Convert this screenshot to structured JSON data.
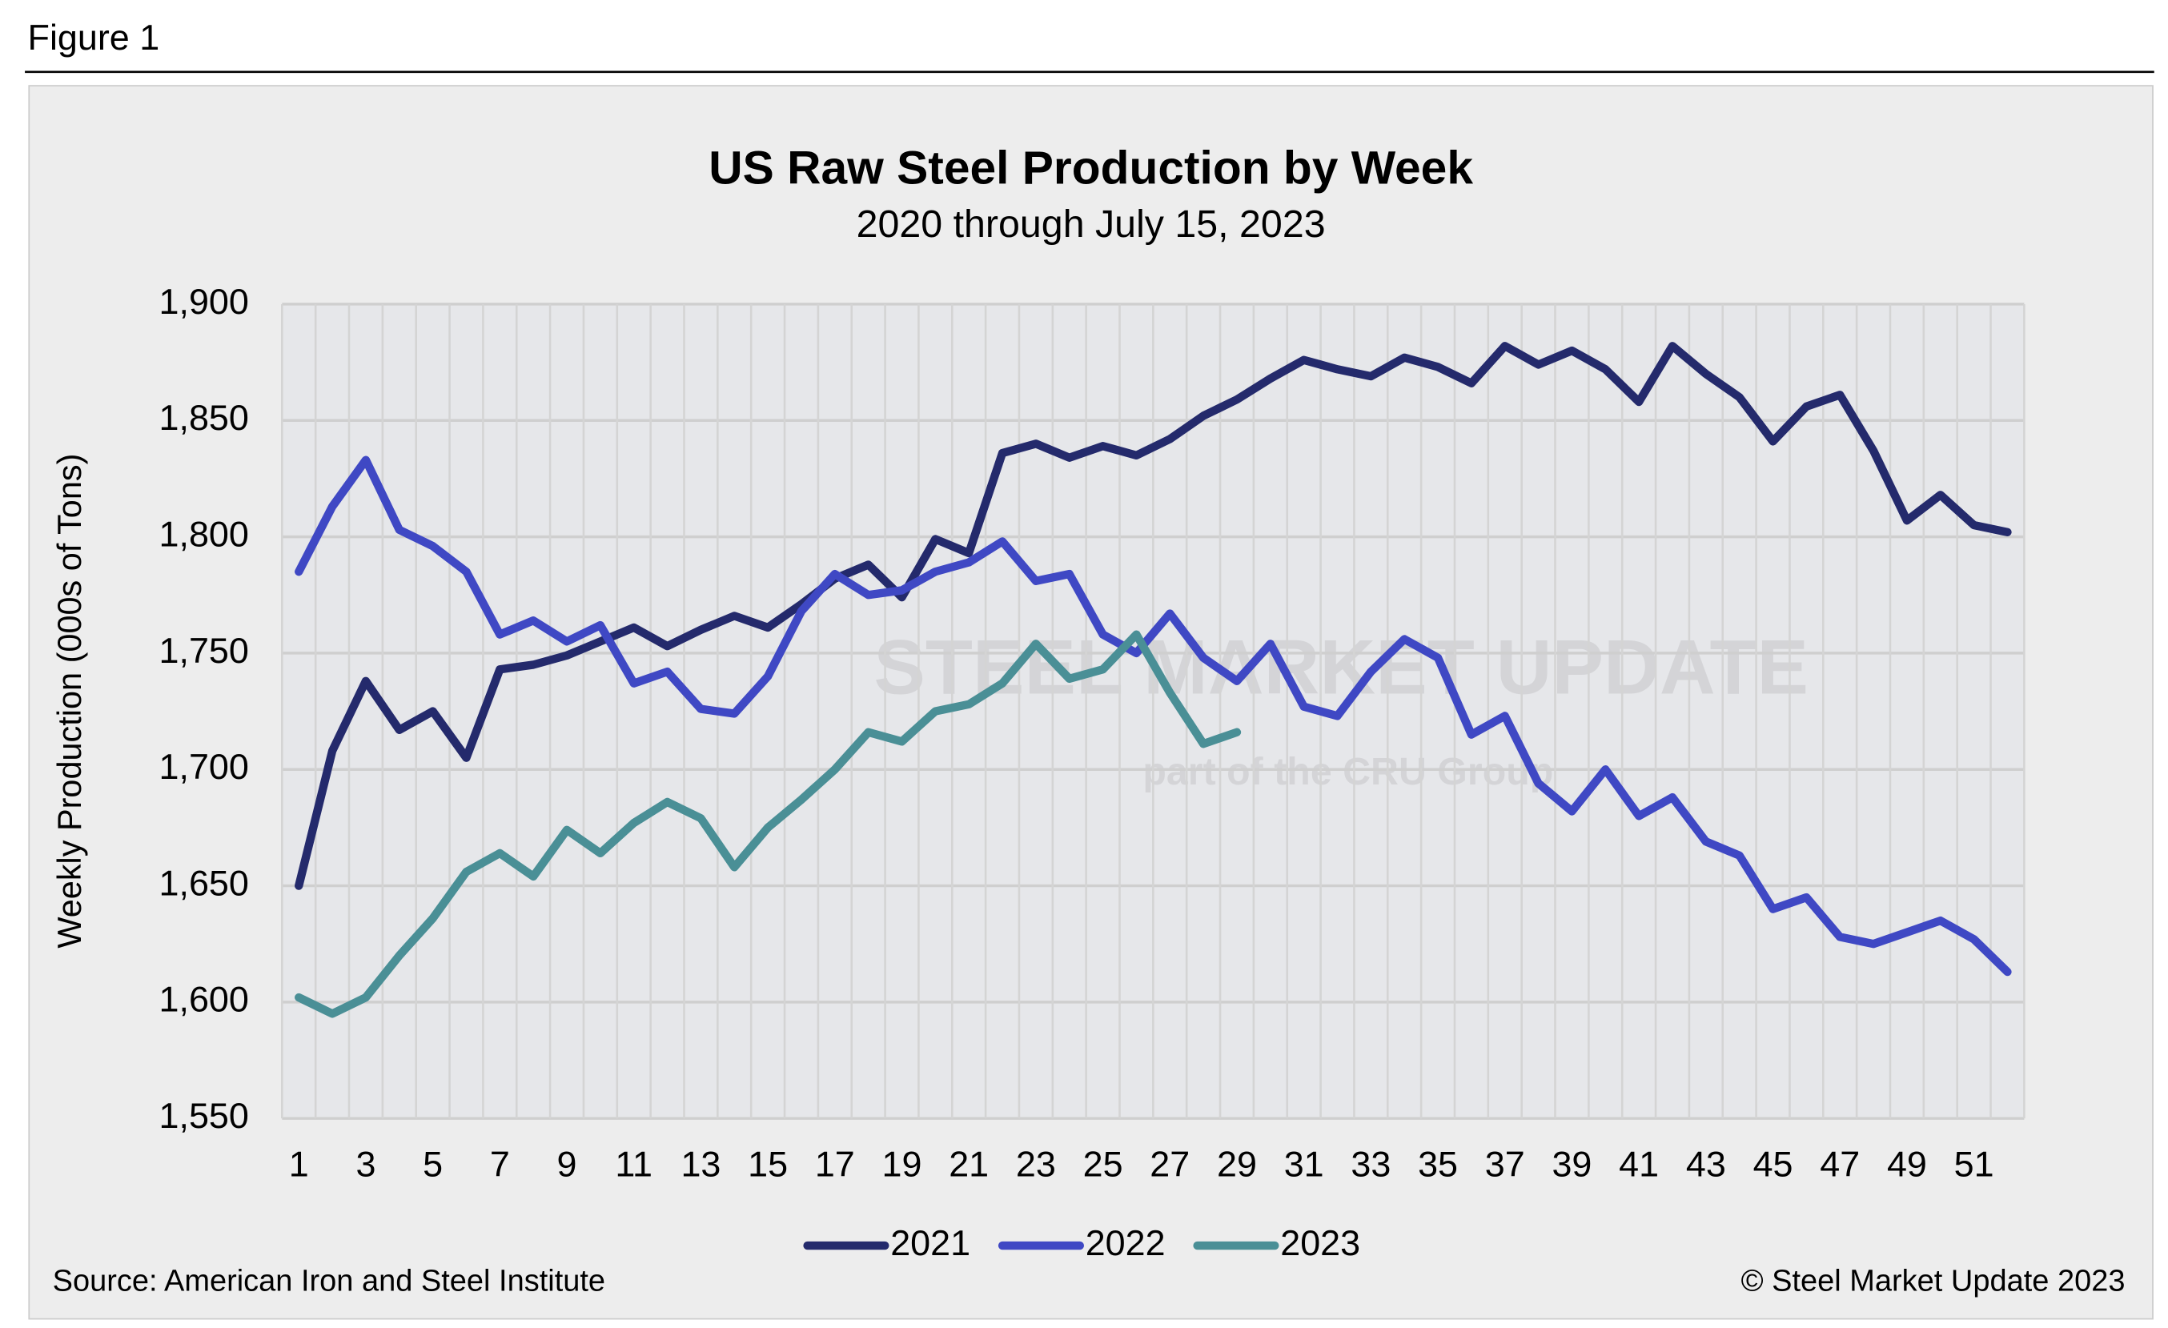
{
  "figure_label": "Figure 1",
  "source": "Source: American Iron and Steel Institute",
  "copyright": "© Steel Market Update 2023",
  "watermark": [
    "STEEL MARKET UPDATE",
    "part of the CRU Group"
  ],
  "chart_data": {
    "type": "line",
    "title": "US Raw Steel Production by Week",
    "subtitle": "2020 through July 15, 2023",
    "y_label": "Weekly Production (000s of Tons)",
    "categories": [
      1,
      null,
      3,
      null,
      5,
      null,
      7,
      null,
      9,
      null,
      11,
      null,
      13,
      null,
      15,
      null,
      17,
      null,
      19,
      null,
      21,
      null,
      23,
      null,
      25,
      null,
      27,
      null,
      29,
      null,
      31,
      null,
      33,
      null,
      35,
      null,
      37,
      null,
      39,
      null,
      41,
      null,
      43,
      null,
      45,
      null,
      47,
      null,
      49,
      null,
      51,
      null
    ],
    "ylim": [
      1550,
      1900
    ],
    "yticks": [
      {
        "value": 1550,
        "label": "1,550"
      },
      {
        "value": 1600,
        "label": "1,600"
      },
      {
        "value": 1650,
        "label": "1,650"
      },
      {
        "value": 1700,
        "label": "1,700"
      },
      {
        "value": 1750,
        "label": "1,750"
      },
      {
        "value": 1800,
        "label": "1,800"
      },
      {
        "value": 1850,
        "label": "1,850"
      },
      {
        "value": 1900,
        "label": "1,900"
      }
    ],
    "grid": true,
    "legend": "bottom",
    "series": [
      {
        "name": "2021",
        "color": "#242a6c",
        "values": [
          1650,
          1708,
          1738,
          1717,
          1725,
          1705,
          1743,
          1745,
          1749,
          1755,
          1761,
          1753,
          1760,
          1766,
          1761,
          1771,
          1782,
          1788,
          1774,
          1799,
          1793,
          1836,
          1840,
          1834,
          1839,
          1835,
          1842,
          1852,
          1859,
          1868,
          1876,
          1872,
          1869,
          1877,
          1873,
          1866,
          1882,
          1874,
          1880,
          1872,
          1858,
          1882,
          1870,
          1860,
          1841,
          1856,
          1861,
          1837,
          1807,
          1818,
          1805,
          1802
        ]
      },
      {
        "name": "2022",
        "color": "#3f48c4",
        "values": [
          1785,
          1813,
          1833,
          1803,
          1796,
          1785,
          1758,
          1764,
          1755,
          1762,
          1737,
          1742,
          1726,
          1724,
          1740,
          1768,
          1784,
          1775,
          1777,
          1785,
          1789,
          1798,
          1781,
          1784,
          1758,
          1750,
          1767,
          1748,
          1738,
          1754,
          1727,
          1723,
          1742,
          1756,
          1748,
          1715,
          1723,
          1694,
          1682,
          1700,
          1680,
          1688,
          1669,
          1663,
          1640,
          1645,
          1628,
          1625,
          1630,
          1635,
          1627,
          1613
        ]
      },
      {
        "name": "2023",
        "color": "#4a8f96",
        "values": [
          1602,
          1595,
          1602,
          1620,
          1636,
          1656,
          1664,
          1654,
          1674,
          1664,
          1677,
          1686,
          1679,
          1658,
          1675,
          1687,
          1700,
          1716,
          1712,
          1725,
          1728,
          1737,
          1754,
          1739,
          1743,
          1758,
          1733,
          1711,
          1716,
          null,
          null,
          null,
          null,
          null,
          null,
          null,
          null,
          null,
          null,
          null,
          null,
          null,
          null,
          null,
          null,
          null,
          null,
          null,
          null,
          null,
          null,
          null
        ]
      }
    ]
  }
}
